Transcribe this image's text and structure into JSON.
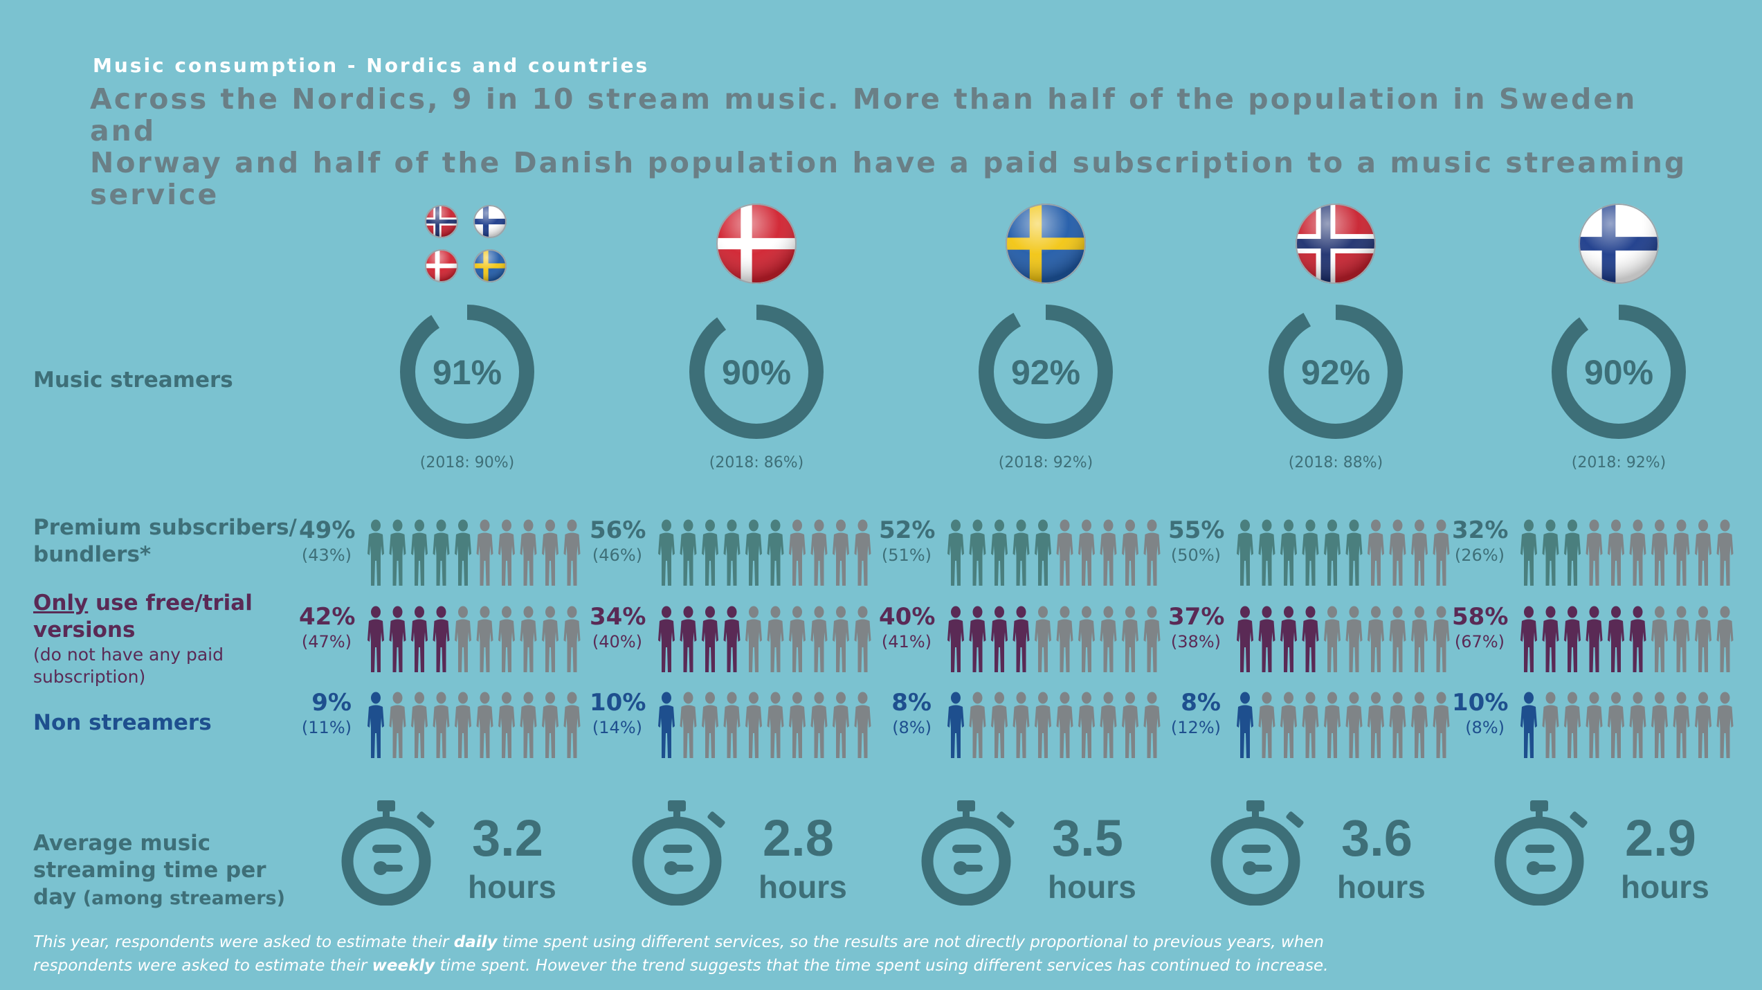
{
  "header": {
    "kicker": "Music consumption - Nordics and countries",
    "headline_line1": "Across the Nordics, 9 in 10 stream music. More than half of the population in Sweden and",
    "headline_line2": "Norway and half of the Danish population have a paid subscription to a music streaming service"
  },
  "row_labels": {
    "streamers": "Music streamers",
    "premium_line1": "Premium subscribers/",
    "premium_line2": "bundlers*",
    "free_only": "Only",
    "free_rest_line1": " use free/trial",
    "free_line2": "versions",
    "free_sub1": "(do not have any paid",
    "free_sub2": "subscription)",
    "non": "Non streamers",
    "time_line1": "Average music",
    "time_line2": "streaming time per",
    "time_line3": "day",
    "time_line3_small": " (among streamers)"
  },
  "colors": {
    "background": "#7bc2d0",
    "ring": "#3d6f78",
    "premium": "#4a7f7e",
    "free": "#5a2a55",
    "non": "#1e4f8e",
    "inactive": "#7f8487"
  },
  "regions": [
    {
      "name": "Nordics",
      "flag": "nordics-flags-icon",
      "streamers_pct": 91,
      "streamers_label": "91%",
      "streamers_prev": "(2018: 90%)",
      "premium_label": "49%",
      "premium_prev": "(43%)",
      "premium_count": 5,
      "free_label": "42%",
      "free_prev": "(47%)",
      "free_count": 4,
      "non_label": "9%",
      "non_prev": "(11%)",
      "non_count": 1,
      "hours_value": "3.2",
      "hours_unit": "hours"
    },
    {
      "name": "Denmark",
      "flag": "denmark-flag-icon",
      "streamers_pct": 90,
      "streamers_label": "90%",
      "streamers_prev": "(2018: 86%)",
      "premium_label": "56%",
      "premium_prev": "(46%)",
      "premium_count": 6,
      "free_label": "34%",
      "free_prev": "(40%)",
      "free_count": 4,
      "non_label": "10%",
      "non_prev": "(14%)",
      "non_count": 1,
      "hours_value": "2.8",
      "hours_unit": "hours"
    },
    {
      "name": "Sweden",
      "flag": "sweden-flag-icon",
      "streamers_pct": 92,
      "streamers_label": "92%",
      "streamers_prev": "(2018: 92%)",
      "premium_label": "52%",
      "premium_prev": "(51%)",
      "premium_count": 5,
      "free_label": "40%",
      "free_prev": "(41%)",
      "free_count": 4,
      "non_label": "8%",
      "non_prev": "(8%)",
      "non_count": 1,
      "hours_value": "3.5",
      "hours_unit": "hours"
    },
    {
      "name": "Norway",
      "flag": "norway-flag-icon",
      "streamers_pct": 92,
      "streamers_label": "92%",
      "streamers_prev": "(2018: 88%)",
      "premium_label": "55%",
      "premium_prev": "(50%)",
      "premium_count": 6,
      "free_label": "37%",
      "free_prev": "(38%)",
      "free_count": 4,
      "non_label": "8%",
      "non_prev": "(12%)",
      "non_count": 1,
      "hours_value": "3.6",
      "hours_unit": "hours"
    },
    {
      "name": "Finland",
      "flag": "finland-flag-icon",
      "streamers_pct": 90,
      "streamers_label": "90%",
      "streamers_prev": "(2018: 92%)",
      "premium_label": "32%",
      "premium_prev": "(26%)",
      "premium_count": 3,
      "free_label": "58%",
      "free_prev": "(67%)",
      "free_count": 6,
      "non_label": "10%",
      "non_prev": "(8%)",
      "non_count": 1,
      "hours_value": "2.9",
      "hours_unit": "hours"
    }
  ],
  "footnote": {
    "p1": "This year, respondents were asked to estimate their ",
    "b1": "daily",
    "p2": " time spent using different services, so the results are not directly proportional to previous years, when",
    "p3": "respondents were asked to estimate their ",
    "b2": "weekly",
    "p4": " time spent. However the trend suggests that the time spent using different services has continued to increase."
  }
}
